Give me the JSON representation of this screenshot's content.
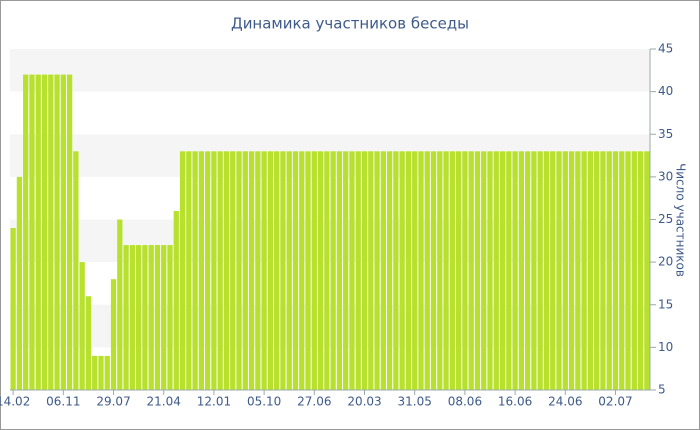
{
  "chart_data": {
    "type": "bar",
    "title": "Динамика участников беседы",
    "y_axis_label": "Число участников",
    "color": "#b8e12e",
    "ylim": [
      5,
      45
    ],
    "yticks": [
      5,
      10,
      15,
      20,
      25,
      30,
      35,
      40,
      45
    ],
    "grid": true,
    "y_axis_side": "right",
    "categories": [
      "14.02",
      null,
      null,
      null,
      null,
      null,
      null,
      null,
      "06.11",
      null,
      null,
      null,
      null,
      null,
      null,
      null,
      "29.07",
      null,
      null,
      null,
      null,
      null,
      null,
      null,
      "21.04",
      null,
      null,
      null,
      null,
      null,
      null,
      null,
      "12.01",
      null,
      null,
      null,
      null,
      null,
      null,
      null,
      "05.10",
      null,
      null,
      null,
      null,
      null,
      null,
      null,
      "27.06",
      null,
      null,
      null,
      null,
      null,
      null,
      null,
      "20.03",
      null,
      null,
      null,
      null,
      null,
      null,
      null,
      "31.05",
      null,
      null,
      null,
      null,
      null,
      null,
      null,
      "08.06",
      null,
      null,
      null,
      null,
      null,
      null,
      null,
      "16.06",
      null,
      null,
      null,
      null,
      null,
      null,
      null,
      "24.06",
      null,
      null,
      null,
      null,
      null,
      null,
      null,
      "02.07",
      null,
      null,
      null,
      null,
      null
    ],
    "values": [
      24,
      30,
      42,
      42,
      42,
      42,
      42,
      42,
      42,
      42,
      33,
      20,
      16,
      9,
      9,
      9,
      18,
      25,
      22,
      22,
      22,
      22,
      22,
      22,
      22,
      22,
      26,
      33,
      33,
      33,
      33,
      33,
      33,
      33,
      33,
      33,
      33,
      33,
      33,
      33,
      33,
      33,
      33,
      33,
      33,
      33,
      33,
      33,
      33,
      33,
      33,
      33,
      33,
      33,
      33,
      33,
      33,
      33,
      33,
      33,
      33,
      33,
      33,
      33,
      33,
      33,
      33,
      33,
      33,
      33,
      33,
      33,
      33,
      33,
      33,
      33,
      33,
      33,
      33,
      33,
      33,
      33,
      33,
      33,
      33,
      33,
      33,
      33,
      33,
      33,
      33,
      33,
      33,
      33,
      33,
      33,
      33,
      33,
      33,
      33,
      33,
      33
    ]
  }
}
